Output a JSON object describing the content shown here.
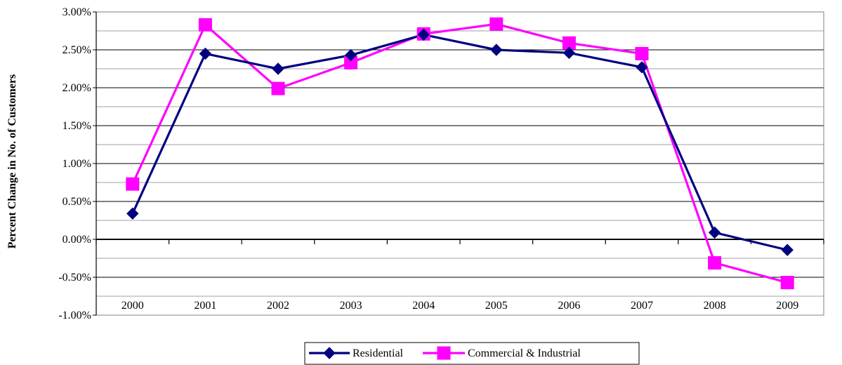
{
  "chart_data": {
    "type": "line",
    "title": "",
    "xlabel": "",
    "ylabel": "Percent Change in No. of Customers",
    "categories": [
      "2000",
      "2001",
      "2002",
      "2003",
      "2004",
      "2005",
      "2006",
      "2007",
      "2008",
      "2009"
    ],
    "y_tick_labels": [
      "-1.00%",
      "-0.50%",
      "0.00%",
      "0.50%",
      "1.00%",
      "1.50%",
      "2.00%",
      "2.50%",
      "3.00%"
    ],
    "ylim": [
      -1.0,
      3.0
    ],
    "y_major_step": 0.5,
    "y_minor_step": 0.25,
    "grid": true,
    "legend_position": "bottom-center",
    "series": [
      {
        "name": "Residential",
        "color": "#000080",
        "marker": "diamond",
        "values": [
          0.34,
          2.45,
          2.25,
          2.43,
          2.7,
          2.5,
          2.46,
          2.27,
          0.09,
          -0.14
        ]
      },
      {
        "name": "Commercial & Industrial",
        "color": "#FF00FF",
        "marker": "square",
        "values": [
          0.73,
          2.83,
          1.99,
          2.33,
          2.71,
          2.84,
          2.59,
          2.45,
          -0.31,
          -0.57
        ]
      }
    ]
  }
}
